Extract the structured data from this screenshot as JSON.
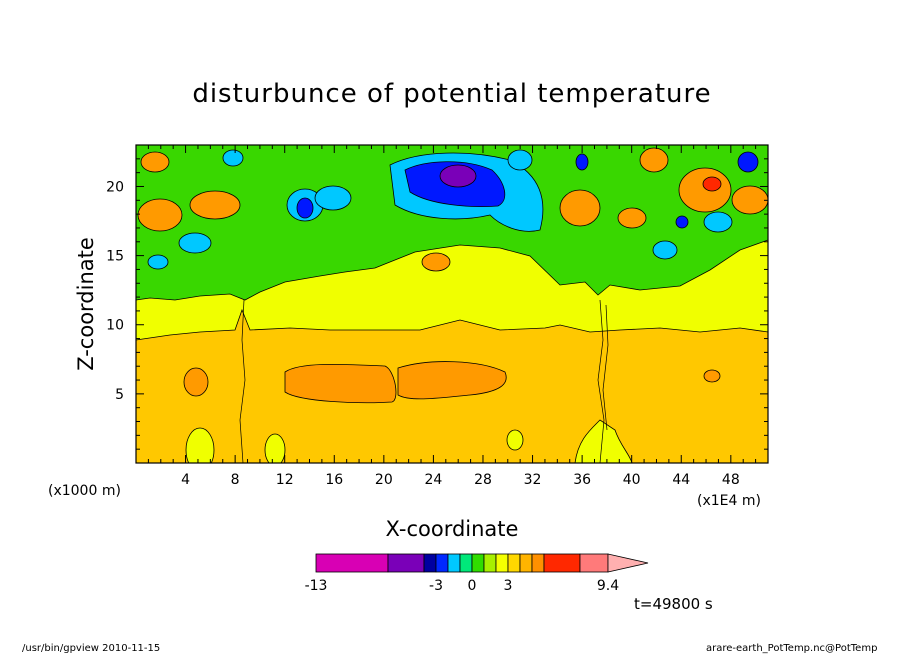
{
  "chart_data": {
    "type": "heatmap",
    "title": "disturbunce of potential temperature",
    "xlabel": "X-coordinate",
    "ylabel": "Z-coordinate",
    "x_unit_left": "(x1000 m)",
    "x_unit_right": "(x1E4 m)",
    "x_ticks": [
      "4",
      "8",
      "12",
      "16",
      "20",
      "24",
      "28",
      "32",
      "36",
      "40",
      "44",
      "48"
    ],
    "y_ticks": [
      "5",
      "10",
      "15",
      "20"
    ],
    "xlim": [
      0,
      51
    ],
    "ylim": [
      0,
      23
    ],
    "colorbar": {
      "tick_labels": [
        "-13",
        "-3",
        "0",
        "3",
        "9.4"
      ],
      "colors": [
        "#d800b4",
        "#7a00b8",
        "#0000a0",
        "#0028ff",
        "#00c8ff",
        "#00e87a",
        "#30dd00",
        "#a8f000",
        "#f5ff00",
        "#ffd800",
        "#ffb400",
        "#ff9000",
        "#ff2800",
        "#ff7a7a",
        "#ffb0b0"
      ]
    },
    "layers": [
      {
        "level": "base",
        "color": "#ffc800"
      },
      {
        "level": "upper",
        "color": "#f0ff00"
      },
      {
        "level": "top",
        "color": "#39d700"
      },
      {
        "level": "pos-small",
        "color": "#ff9a00"
      },
      {
        "level": "neg",
        "color": "#00c8ff"
      },
      {
        "level": "neg-strong",
        "color": "#0018ff"
      },
      {
        "level": "min",
        "color": "#7a00b8"
      }
    ]
  },
  "time_label": "t=49800 s",
  "footer_left": "/usr/bin/gpview   2010-11-15",
  "footer_right": "arare-earth_PotTemp.nc@PotTemp"
}
